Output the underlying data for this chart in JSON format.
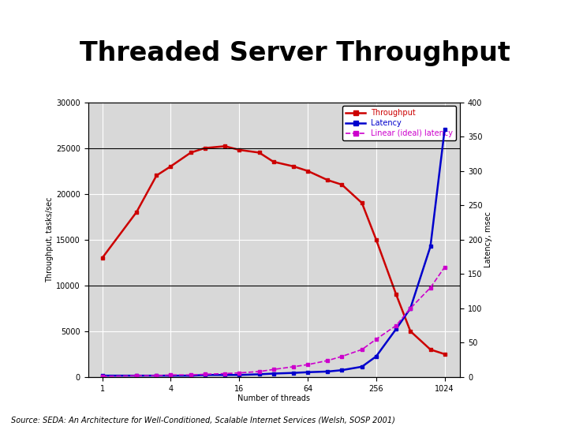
{
  "title": "Threaded Server Throughput",
  "xlabel": "Number of threads",
  "ylabel_left": "Throughput, tasks/sec",
  "ylabel_right": "Latency, msec",
  "source": "Source: SEDA: An Architecture for Well-Conditioned, Scalable Internet Services (Welsh, SOSP 2001)",
  "x_threads": [
    1,
    2,
    3,
    4,
    6,
    8,
    12,
    16,
    24,
    32,
    48,
    64,
    96,
    128,
    192,
    256,
    384,
    512,
    768,
    1024
  ],
  "throughput": [
    13000,
    18000,
    22000,
    23000,
    24500,
    25000,
    25200,
    24800,
    24500,
    23500,
    23000,
    22500,
    21500,
    21000,
    19000,
    15000,
    9000,
    5000,
    3000,
    2500
  ],
  "latency": [
    2,
    2,
    2,
    2,
    2,
    3,
    3,
    3,
    4,
    5,
    6,
    7,
    8,
    10,
    15,
    30,
    70,
    100,
    190,
    360
  ],
  "linear_latency": [
    1,
    2,
    2,
    3,
    3,
    4,
    5,
    6,
    8,
    11,
    15,
    18,
    24,
    30,
    40,
    55,
    75,
    100,
    130,
    160
  ],
  "throughput_color": "#cc0000",
  "latency_color": "#0000cc",
  "linear_latency_color": "#cc00cc",
  "ylim_left": [
    0,
    30000
  ],
  "ylim_right": [
    0,
    400
  ],
  "yticks_left": [
    0,
    5000,
    10000,
    15000,
    20000,
    25000,
    30000
  ],
  "yticks_right": [
    0,
    50,
    100,
    150,
    200,
    250,
    300,
    350,
    400
  ],
  "xtick_labels": [
    "1",
    "4",
    "16",
    "64",
    "256",
    "1024"
  ],
  "xtick_positions": [
    1,
    4,
    16,
    64,
    256,
    1024
  ],
  "title_fontsize": 24,
  "axis_label_fontsize": 7,
  "tick_fontsize": 7,
  "legend_fontsize": 7,
  "source_fontsize": 7,
  "plot_bg_color": "#d8d8d8",
  "deco_yellow": "#f5c400",
  "deco_blue_dark": "#1a2c6e",
  "deco_blue_light": "#4060c0",
  "deco_red": "#cc2020"
}
